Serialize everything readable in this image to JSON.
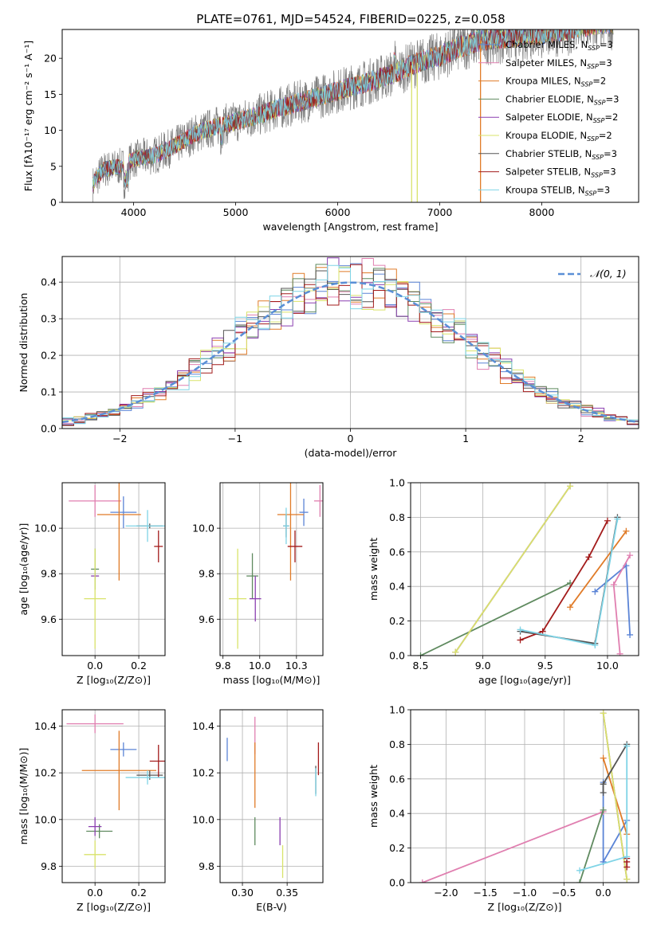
{
  "title": "PLATE=0761, MJD=54524, FIBERID=0225, z=0.058",
  "colors": {
    "Chabrier MILES": "#5b84d6",
    "Salpeter MILES": "#e07fb0",
    "Kroupa MILES": "#e07b28",
    "Chabrier ELODIE": "#5f8a5f",
    "Salpeter ELODIE": "#8b3fb0",
    "Kroupa ELODIE": "#d9e36a",
    "Chabrier STELIB": "#555555",
    "Salpeter STELIB": "#a31b1b",
    "Kroupa STELIB": "#7fd4e6",
    "data": "#7f7f7f",
    "gaussian": "#5a8fd6"
  },
  "chart_data": [
    {
      "id": "spectrum",
      "type": "line",
      "title": "PLATE=0761, MJD=54524, FIBERID=0225, z=0.058",
      "xlabel": "wavelength [Angstrom, rest frame]",
      "ylabel": "Flux [fλ10⁻¹⁷ erg cm⁻² s⁻¹ A⁻¹]",
      "xlim": [
        3300,
        8950
      ],
      "ylim": [
        0,
        24
      ],
      "xticks": [
        4000,
        5000,
        6000,
        7000,
        8000
      ],
      "yticks": [
        0,
        5,
        10,
        15,
        20
      ],
      "legend_position": "top-right",
      "legend": [
        {
          "name": "Chabrier MILES",
          "sub": "SSP",
          "n": "=3"
        },
        {
          "name": "Salpeter MILES",
          "sub": "SSP",
          "n": "=3"
        },
        {
          "name": "Kroupa MILES",
          "sub": "SSP",
          "n": "=2"
        },
        {
          "name": "Chabrier ELODIE",
          "sub": "SSP",
          "n": "=3"
        },
        {
          "name": "Salpeter ELODIE",
          "sub": "SSP",
          "n": "=2"
        },
        {
          "name": "Kroupa ELODIE",
          "sub": "SSP",
          "n": "=2"
        },
        {
          "name": "Chabrier STELIB",
          "sub": "SSP",
          "n": "=3"
        },
        {
          "name": "Salpeter STELIB",
          "sub": "SSP",
          "n": "=3"
        },
        {
          "name": "Kroupa STELIB",
          "sub": "SSP",
          "n": "=3"
        }
      ],
      "continuum": [
        [
          3600,
          2.5
        ],
        [
          3700,
          4.5
        ],
        [
          3800,
          4.8
        ],
        [
          3900,
          5.0
        ],
        [
          4000,
          6.0
        ],
        [
          4200,
          6.5
        ],
        [
          4400,
          7.8
        ],
        [
          4600,
          9.5
        ],
        [
          4800,
          10.5
        ],
        [
          5000,
          11.2
        ],
        [
          5200,
          12.0
        ],
        [
          5400,
          13.0
        ],
        [
          5600,
          13.8
        ],
        [
          5800,
          14.6
        ],
        [
          6000,
          15.5
        ],
        [
          6200,
          16.3
        ],
        [
          6400,
          17.2
        ],
        [
          6600,
          18.2
        ],
        [
          6800,
          19.5
        ],
        [
          7000,
          20.3
        ],
        [
          7200,
          21.6
        ],
        [
          7400,
          22.5
        ],
        [
          7600,
          22.8
        ],
        [
          7800,
          23.2
        ],
        [
          8000,
          23.5
        ],
        [
          8200,
          24.0
        ],
        [
          8400,
          24.5
        ],
        [
          8600,
          25.0
        ],
        [
          8700,
          25.0
        ]
      ],
      "drops": [
        {
          "x": 6780,
          "model": "Kroupa ELODIE"
        },
        {
          "x": 6725,
          "model": "Kroupa ELODIE"
        },
        {
          "x": 7400,
          "model": "Kroupa MILES"
        }
      ]
    },
    {
      "id": "residuals",
      "type": "bar",
      "xlabel": "(data-model)/error",
      "ylabel": "Normed distribution",
      "xlim": [
        -2.5,
        2.5
      ],
      "ylim": [
        0,
        0.47
      ],
      "xticks": [
        -2,
        -1,
        0,
        1,
        2
      ],
      "yticks": [
        0.0,
        0.1,
        0.2,
        0.3,
        0.4
      ],
      "bin_width": 0.1,
      "legend_position": "top-right",
      "legend": [
        "𝒩(0, 1)"
      ],
      "gaussian": {
        "mean": 0,
        "sigma": 1
      }
    },
    {
      "id": "age-vs-Z",
      "type": "scatter",
      "xlabel": "Z [log₁₀(Z/Z⊙)]",
      "ylabel": "age  [log₁₀(age/yr)]",
      "xlim": [
        -0.15,
        0.32
      ],
      "ylim": [
        9.44,
        10.2
      ],
      "xticks": [
        0.0,
        0.2
      ],
      "yticks": [
        9.6,
        9.8,
        10.0
      ],
      "points": [
        {
          "model": "Chabrier MILES",
          "x": 0.13,
          "xerr": 0.06,
          "y": 10.07,
          "yerr": 0.07
        },
        {
          "model": "Salpeter MILES",
          "x": 0.0,
          "xerr": 0.12,
          "y": 10.12,
          "yerr": 0.07
        },
        {
          "model": "Kroupa MILES",
          "x": 0.11,
          "xerr": 0.1,
          "y": 10.06,
          "yerr": 0.29
        },
        {
          "model": "Chabrier ELODIE",
          "x": 0.0,
          "xerr": 0.0,
          "y": 9.82,
          "yerr": 0.09
        },
        {
          "model": "Salpeter ELODIE",
          "x": 0.0,
          "xerr": 0.0,
          "y": 9.79,
          "yerr": 0.0
        },
        {
          "model": "Kroupa ELODIE",
          "x": 0.0,
          "xerr": 0.05,
          "y": 9.69,
          "yerr": 0.22
        },
        {
          "model": "Chabrier STELIB",
          "x": 0.25,
          "xerr": 0.06,
          "y": 10.01,
          "yerr": 0.01
        },
        {
          "model": "Salpeter STELIB",
          "x": 0.29,
          "xerr": 0.02,
          "y": 9.92,
          "yerr": 0.07
        },
        {
          "model": "Kroupa STELIB",
          "x": 0.24,
          "xerr": 0.1,
          "y": 10.01,
          "yerr": 0.07
        }
      ]
    },
    {
      "id": "age-vs-mass",
      "type": "scatter",
      "xlabel": "mass [log₁₀(M/M⊙)]",
      "ylabel": "",
      "xlim": [
        9.73,
        10.43
      ],
      "ylim": [
        9.44,
        10.2
      ],
      "xticks": [
        9.75,
        10.0,
        10.25
      ],
      "yticks": [
        9.6,
        9.8,
        10.0
      ],
      "points": [
        {
          "model": "Chabrier MILES",
          "x": 10.3,
          "xerr": 0.03,
          "y": 10.07,
          "yerr": 0.06
        },
        {
          "model": "Salpeter MILES",
          "x": 10.41,
          "xerr": 0.04,
          "y": 10.12,
          "yerr": 0.07
        },
        {
          "model": "Kroupa MILES",
          "x": 10.21,
          "xerr": 0.09,
          "y": 10.06,
          "yerr": 0.29
        },
        {
          "model": "Chabrier ELODIE",
          "x": 9.95,
          "xerr": 0.04,
          "y": 9.79,
          "yerr": 0.1
        },
        {
          "model": "Salpeter ELODIE",
          "x": 9.97,
          "xerr": 0.04,
          "y": 9.69,
          "yerr": 0.1
        },
        {
          "model": "Kroupa ELODIE",
          "x": 9.85,
          "xerr": 0.06,
          "y": 9.69,
          "yerr": 0.22
        },
        {
          "model": "Chabrier STELIB",
          "x": 10.18,
          "xerr": 0.02,
          "y": 10.01,
          "yerr": 0.05
        },
        {
          "model": "Salpeter STELIB",
          "x": 10.24,
          "xerr": 0.05,
          "y": 9.92,
          "yerr": 0.07
        },
        {
          "model": "Kroupa STELIB",
          "x": 10.18,
          "xerr": 0.02,
          "y": 10.01,
          "yerr": 0.08
        }
      ]
    },
    {
      "id": "weight-vs-age",
      "type": "line",
      "xlabel": "age  [log₁₀(age/yr)]",
      "ylabel": "mass weight",
      "xlim": [
        8.42,
        10.25
      ],
      "ylim": [
        0.0,
        1.0
      ],
      "xticks": [
        8.5,
        9.0,
        9.5,
        10.0
      ],
      "yticks": [
        0.0,
        0.2,
        0.4,
        0.6,
        0.8,
        1.0
      ],
      "series": [
        {
          "model": "Chabrier MILES",
          "points": [
            [
              9.9,
              0.37
            ],
            [
              10.15,
              0.52
            ],
            [
              10.18,
              0.12
            ]
          ]
        },
        {
          "model": "Salpeter MILES",
          "points": [
            [
              10.18,
              0.58
            ],
            [
              10.05,
              0.41
            ],
            [
              10.1,
              0.01
            ]
          ]
        },
        {
          "model": "Kroupa MILES",
          "points": [
            [
              9.7,
              0.28
            ],
            [
              10.15,
              0.72
            ]
          ]
        },
        {
          "model": "Chabrier ELODIE",
          "points": [
            [
              8.5,
              0.0
            ],
            [
              9.7,
              0.42
            ]
          ]
        },
        {
          "model": "Salpeter ELODIE",
          "points": [
            [
              8.78,
              0.02
            ],
            [
              9.7,
              0.98
            ]
          ]
        },
        {
          "model": "Kroupa ELODIE",
          "points": [
            [
              8.78,
              0.02
            ],
            [
              9.7,
              0.98
            ]
          ]
        },
        {
          "model": "Chabrier STELIB",
          "points": [
            [
              9.3,
              0.14
            ],
            [
              9.9,
              0.07
            ],
            [
              10.08,
              0.8
            ]
          ]
        },
        {
          "model": "Salpeter STELIB",
          "points": [
            [
              9.3,
              0.09
            ],
            [
              9.48,
              0.14
            ],
            [
              9.85,
              0.57
            ],
            [
              10.0,
              0.78
            ]
          ]
        },
        {
          "model": "Kroupa STELIB",
          "points": [
            [
              9.3,
              0.15
            ],
            [
              9.9,
              0.06
            ],
            [
              10.08,
              0.79
            ]
          ]
        }
      ]
    },
    {
      "id": "mass-vs-Z",
      "type": "scatter",
      "xlabel": "Z [log₁₀(Z/Z⊙)]",
      "ylabel": "mass [log₁₀(M/M⊙)]",
      "xlim": [
        -0.15,
        0.32
      ],
      "ylim": [
        9.73,
        10.47
      ],
      "xticks": [
        0.0,
        0.2
      ],
      "yticks": [
        9.8,
        10.0,
        10.2,
        10.4
      ],
      "points": [
        {
          "model": "Chabrier MILES",
          "x": 0.13,
          "xerr": 0.06,
          "y": 10.3,
          "yerr": 0.03
        },
        {
          "model": "Salpeter MILES",
          "x": 0.0,
          "xerr": 0.13,
          "y": 10.41,
          "yerr": 0.04
        },
        {
          "model": "Kroupa MILES",
          "x": 0.11,
          "xerr": 0.17,
          "y": 10.21,
          "yerr": 0.17
        },
        {
          "model": "Chabrier ELODIE",
          "x": 0.02,
          "xerr": 0.06,
          "y": 9.95,
          "yerr": 0.03
        },
        {
          "model": "Salpeter ELODIE",
          "x": 0.0,
          "xerr": 0.03,
          "y": 9.97,
          "yerr": 0.04
        },
        {
          "model": "Kroupa ELODIE",
          "x": 0.0,
          "xerr": 0.05,
          "y": 9.85,
          "yerr": 0.06
        },
        {
          "model": "Chabrier STELIB",
          "x": 0.25,
          "xerr": 0.06,
          "y": 10.19,
          "yerr": 0.02
        },
        {
          "model": "Salpeter STELIB",
          "x": 0.29,
          "xerr": 0.04,
          "y": 10.25,
          "yerr": 0.07
        },
        {
          "model": "Kroupa STELIB",
          "x": 0.24,
          "xerr": 0.1,
          "y": 10.18,
          "yerr": 0.03
        }
      ]
    },
    {
      "id": "mass-vs-EBV",
      "type": "scatter",
      "xlabel": "E(B-V)",
      "ylabel": "",
      "xlim": [
        0.275,
        0.39
      ],
      "ylim": [
        9.73,
        10.47
      ],
      "xticks": [
        0.3,
        0.35
      ],
      "yticks": [
        9.8,
        10.0,
        10.2,
        10.4
      ],
      "points": [
        {
          "model": "Chabrier MILES",
          "x": 0.283,
          "xerr": 0.0,
          "y": 10.3,
          "yerr": 0.05
        },
        {
          "model": "Salpeter MILES",
          "x": 0.314,
          "xerr": 0.0,
          "y": 10.36,
          "yerr": 0.08
        },
        {
          "model": "Kroupa MILES",
          "x": 0.314,
          "xerr": 0.0,
          "y": 10.19,
          "yerr": 0.14
        },
        {
          "model": "Chabrier ELODIE",
          "x": 0.314,
          "xerr": 0.0,
          "y": 9.95,
          "yerr": 0.06
        },
        {
          "model": "Salpeter ELODIE",
          "x": 0.342,
          "xerr": 0.0,
          "y": 9.95,
          "yerr": 0.06
        },
        {
          "model": "Kroupa ELODIE",
          "x": 0.345,
          "xerr": 0.0,
          "y": 9.82,
          "yerr": 0.07
        },
        {
          "model": "Chabrier STELIB",
          "x": 0.382,
          "xerr": 0.0,
          "y": 10.17,
          "yerr": 0.06
        },
        {
          "model": "Salpeter STELIB",
          "x": 0.385,
          "xerr": 0.0,
          "y": 10.26,
          "yerr": 0.07
        },
        {
          "model": "Kroupa STELIB",
          "x": 0.382,
          "xerr": 0.0,
          "y": 10.16,
          "yerr": 0.06
        }
      ]
    },
    {
      "id": "weight-vs-Z",
      "type": "line",
      "xlabel": "Z [log₁₀(Z/Z⊙)]",
      "ylabel": "mass weight",
      "xlim": [
        -2.45,
        0.45
      ],
      "ylim": [
        0.0,
        1.0
      ],
      "xticks": [
        -2.0,
        -1.5,
        -1.0,
        -0.5,
        0.0
      ],
      "yticks": [
        0.0,
        0.2,
        0.4,
        0.6,
        0.8,
        1.0
      ],
      "series": [
        {
          "model": "Chabrier MILES",
          "points": [
            [
              0.0,
              0.58
            ],
            [
              0.0,
              0.12
            ],
            [
              0.3,
              0.36
            ]
          ]
        },
        {
          "model": "Salpeter MILES",
          "points": [
            [
              -2.3,
              0.0
            ],
            [
              0.0,
              0.41
            ]
          ]
        },
        {
          "model": "Kroupa MILES",
          "points": [
            [
              0.0,
              0.72
            ],
            [
              0.3,
              0.28
            ]
          ]
        },
        {
          "model": "Chabrier ELODIE",
          "points": [
            [
              -0.3,
              0.0
            ],
            [
              0.0,
              0.42
            ]
          ]
        },
        {
          "model": "Salpeter ELODIE",
          "points": [
            [
              0.0,
              0.98
            ],
            [
              0.3,
              0.02
            ]
          ]
        },
        {
          "model": "Kroupa ELODIE",
          "points": [
            [
              0.0,
              0.98
            ],
            [
              0.3,
              0.02
            ]
          ]
        },
        {
          "model": "Chabrier STELIB",
          "points": [
            [
              0.0,
              0.52
            ],
            [
              0.0,
              0.57
            ],
            [
              0.3,
              0.8
            ]
          ]
        },
        {
          "model": "Salpeter STELIB",
          "points": [
            [
              0.3,
              0.09
            ],
            [
              0.3,
              0.14
            ],
            [
              0.3,
              0.12
            ]
          ]
        },
        {
          "model": "Kroupa STELIB",
          "points": [
            [
              -0.3,
              0.07
            ],
            [
              0.3,
              0.15
            ],
            [
              0.3,
              0.79
            ]
          ]
        }
      ]
    }
  ]
}
